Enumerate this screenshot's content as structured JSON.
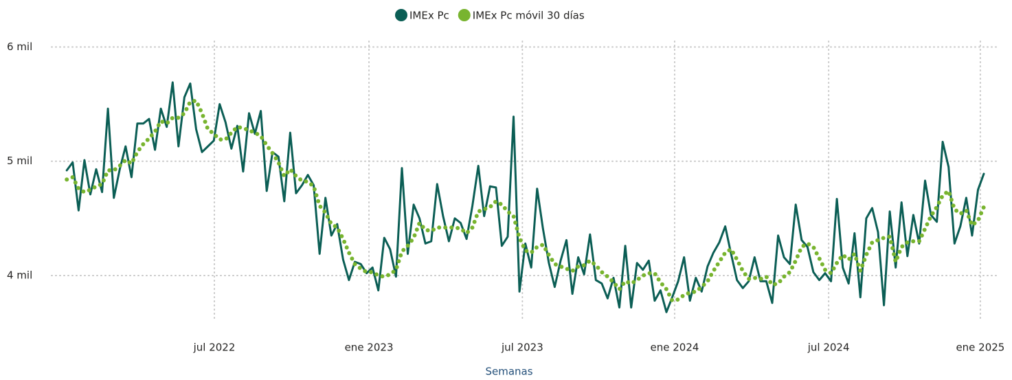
{
  "chart_data": {
    "type": "line",
    "x_label": "Semanas",
    "categories": [
      null,
      null,
      null,
      null,
      null,
      null,
      null,
      null,
      null,
      null,
      null,
      null,
      null,
      null,
      null,
      null,
      null,
      null,
      null,
      null,
      null,
      null,
      null,
      null,
      null,
      null,
      null,
      null,
      null,
      null,
      null,
      null,
      null,
      null,
      null,
      null,
      null,
      null,
      null,
      null,
      null,
      null,
      null,
      null,
      null,
      null,
      null,
      null,
      null,
      null,
      null,
      null,
      null,
      null,
      null,
      null,
      null,
      null,
      null,
      null,
      null,
      null,
      null,
      null,
      null,
      null,
      null,
      null,
      null,
      null,
      null,
      null,
      null,
      null,
      null,
      null,
      null,
      null,
      null,
      null,
      null,
      null,
      null,
      null,
      null,
      null,
      null,
      null,
      null,
      null,
      null,
      null,
      null,
      null,
      null,
      null,
      null,
      null,
      null,
      null,
      null,
      null,
      null,
      null,
      null,
      null,
      null,
      null,
      null,
      null,
      null,
      null,
      null,
      null,
      null,
      null,
      null,
      null,
      null,
      null,
      null,
      null,
      null,
      null,
      null,
      null,
      null,
      null,
      null,
      null,
      null,
      null,
      null,
      null,
      null,
      null,
      null,
      null,
      null,
      null,
      null,
      null,
      null,
      null,
      null,
      null,
      null,
      null,
      null,
      null,
      null,
      null,
      null,
      null,
      null,
      null,
      null
    ],
    "series": [
      {
        "name": "IMEx Pc",
        "color": "#0b5e55",
        "style": "solid",
        "values": [
          4920,
          4990,
          4570,
          5010,
          4710,
          4930,
          4730,
          5460,
          4680,
          4930,
          5130,
          4860,
          5330,
          5330,
          5370,
          5100,
          5460,
          5300,
          5690,
          5130,
          5560,
          5680,
          5280,
          5080,
          5130,
          5180,
          5500,
          5340,
          5110,
          5310,
          4910,
          5420,
          5240,
          5440,
          4740,
          5080,
          5040,
          4650,
          5250,
          4720,
          4790,
          4880,
          4790,
          4190,
          4680,
          4350,
          4450,
          4140,
          3960,
          4120,
          4100,
          4020,
          4070,
          3870,
          4330,
          4230,
          3990,
          4940,
          4190,
          4620,
          4500,
          4280,
          4300,
          4800,
          4520,
          4300,
          4500,
          4460,
          4320,
          4610,
          4960,
          4520,
          4780,
          4770,
          4260,
          4340,
          5390,
          3860,
          4280,
          4070,
          4760,
          4410,
          4110,
          3900,
          4130,
          4310,
          3840,
          4160,
          4010,
          4360,
          3960,
          3930,
          3800,
          3980,
          3720,
          4260,
          3720,
          4110,
          4050,
          4130,
          3780,
          3870,
          3680,
          3810,
          3950,
          4160,
          3780,
          3980,
          3860,
          4080,
          4200,
          4290,
          4430,
          4190,
          3960,
          3890,
          3950,
          4160,
          3950,
          3950,
          3760,
          4350,
          4160,
          4100,
          4620,
          4310,
          4250,
          4030,
          3960,
          4020,
          3950,
          4670,
          4070,
          3930,
          4370,
          3810,
          4500,
          4590,
          4380,
          3740,
          4560,
          4070,
          4640,
          4170,
          4530,
          4280,
          4830,
          4530,
          4470,
          5170,
          4950,
          4280,
          4430,
          4680,
          4350,
          4750,
          4890
        ]
      },
      {
        "name": "IMEx Pc móvil 30 días",
        "color": "#78b42f",
        "style": "dotted",
        "values": [
          4840,
          4860,
          4760,
          4730,
          4750,
          4780,
          4800,
          4920,
          4920,
          4960,
          5010,
          4980,
          5080,
          5150,
          5200,
          5260,
          5350,
          5330,
          5380,
          5380,
          5420,
          5520,
          5530,
          5420,
          5280,
          5240,
          5190,
          5190,
          5250,
          5300,
          5290,
          5270,
          5250,
          5220,
          5140,
          5070,
          4990,
          4870,
          4930,
          4870,
          4830,
          4820,
          4780,
          4610,
          4550,
          4450,
          4420,
          4320,
          4200,
          4100,
          4060,
          4030,
          4030,
          4000,
          3990,
          4010,
          4050,
          4210,
          4260,
          4330,
          4460,
          4400,
          4390,
          4420,
          4420,
          4420,
          4420,
          4410,
          4370,
          4420,
          4560,
          4580,
          4600,
          4650,
          4620,
          4560,
          4520,
          4330,
          4220,
          4200,
          4250,
          4270,
          4180,
          4100,
          4080,
          4060,
          4040,
          4080,
          4090,
          4130,
          4090,
          4030,
          3990,
          3940,
          3880,
          3950,
          3930,
          3960,
          4000,
          4020,
          4020,
          3940,
          3880,
          3780,
          3790,
          3830,
          3850,
          3860,
          3900,
          3950,
          4040,
          4120,
          4200,
          4230,
          4140,
          4040,
          3970,
          3980,
          3970,
          3990,
          3920,
          3930,
          3990,
          4030,
          4130,
          4250,
          4280,
          4250,
          4150,
          4050,
          4020,
          4110,
          4180,
          4140,
          4190,
          4040,
          4180,
          4290,
          4310,
          4330,
          4340,
          4120,
          4250,
          4290,
          4300,
          4300,
          4410,
          4520,
          4600,
          4700,
          4740,
          4580,
          4540,
          4570,
          4440,
          4480,
          4600
        ]
      }
    ],
    "xlim": [
      -2.6,
      158.1
    ],
    "xticks": [
      {
        "value": 25.1,
        "label": "jul 2022"
      },
      {
        "value": 51.4,
        "label": "ene 2023"
      },
      {
        "value": 77.5,
        "label": "jul 2023"
      },
      {
        "value": 103.4,
        "label": "ene 2024"
      },
      {
        "value": 129.6,
        "label": "jul 2024"
      },
      {
        "value": 155.4,
        "label": "ene 2025"
      }
    ],
    "ylim": [
      3615,
      6050
    ],
    "yticks": [
      {
        "value": 4000,
        "label": "4 mil"
      },
      {
        "value": 5000,
        "label": "5 mil"
      },
      {
        "value": 6000,
        "label": "6 mil"
      }
    ],
    "grid": true,
    "legend": "top"
  }
}
